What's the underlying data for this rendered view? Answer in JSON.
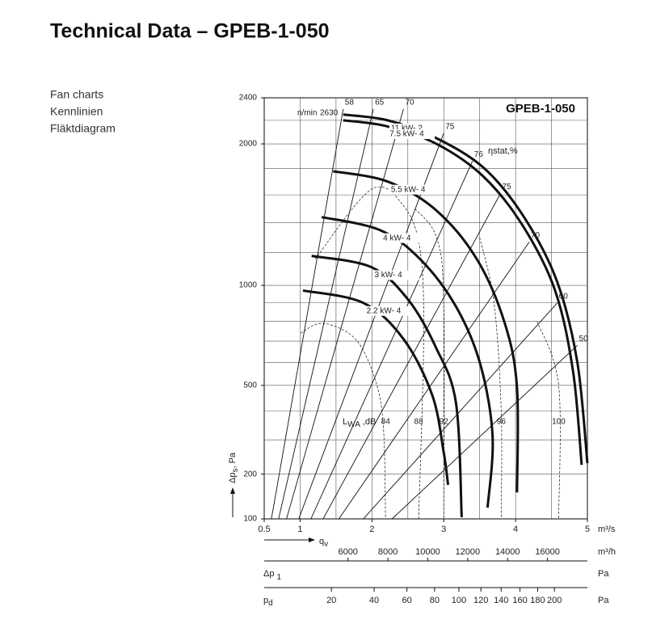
{
  "header": {
    "title": "Technical Data – GPEB-1-050"
  },
  "side_labels": [
    "Fan charts",
    "Kennlinien",
    "Fläktdiagram"
  ],
  "chart_data": {
    "type": "line",
    "title": "GPEB-1-050",
    "yscale": "sqrt",
    "xlim": [
      0.5,
      5
    ],
    "xticks": [
      0.5,
      1,
      2,
      3,
      4,
      5
    ],
    "xgrid": [
      0.5,
      1,
      1.5,
      2,
      2.5,
      3,
      3.5,
      4,
      4.5,
      5
    ],
    "ylim": [
      100,
      2400
    ],
    "yticks": [
      100,
      200,
      500,
      1000,
      2000,
      2400
    ],
    "ygrid": [
      100,
      200,
      300,
      400,
      500,
      600,
      700,
      800,
      900,
      1000,
      1200,
      1400,
      1600,
      1800,
      2000,
      2200,
      2400
    ],
    "xlabel": "q",
    "xlabel_sub": "v",
    "x_unit": "m³/s",
    "ylabel": "Δp",
    "ylabel_sub": "s",
    "ylabel_tail": ", Pa",
    "speed_label": "n/min",
    "speed": 2630,
    "efficiency_label": "ηstat,%",
    "noise_label": "L",
    "noise_label_sub": "WA",
    "noise_label_tail": ",dB",
    "color": "#111111",
    "series": [
      {
        "name": "11 kW- 2",
        "x": [
          1.6,
          2.22,
          2.89,
          3.57,
          4.13,
          4.58,
          4.86,
          5.0
        ],
        "values": [
          2250,
          2200,
          2050,
          1800,
          1430,
          1020,
          600,
          230
        ]
      },
      {
        "name": "7.5 kW- 4",
        "x": [
          1.6,
          2.2,
          2.9,
          3.55,
          4.1,
          4.55,
          4.8,
          4.92
        ],
        "values": [
          2200,
          2150,
          2000,
          1740,
          1380,
          970,
          560,
          225
        ]
      },
      {
        "name": "5.5 kW- 4",
        "x": [
          1.46,
          2.22,
          2.89,
          3.46,
          3.85,
          4.02,
          4.02
        ],
        "values": [
          1780,
          1700,
          1490,
          1160,
          790,
          490,
          155
        ]
      },
      {
        "name": "4 kW- 4",
        "x": [
          1.3,
          2.11,
          2.67,
          3.17,
          3.51,
          3.68,
          3.61
        ],
        "values": [
          1440,
          1350,
          1160,
          880,
          590,
          310,
          122
        ]
      },
      {
        "name": "3 kW- 4",
        "x": [
          1.16,
          1.99,
          2.5,
          2.89,
          3.17,
          3.25
        ],
        "values": [
          1180,
          1110,
          920,
          670,
          430,
          103
        ]
      },
      {
        "name": "2.2 kW- 4",
        "x": [
          1.04,
          1.88,
          2.44,
          2.84,
          3.0,
          3.06
        ],
        "values": [
          970,
          900,
          710,
          460,
          260,
          173
        ]
      }
    ],
    "efficiency_lines": [
      {
        "name": "58",
        "x": [
          0.6,
          1.6
        ],
        "values": [
          100,
          2300
        ]
      },
      {
        "name": "65",
        "x": [
          0.7,
          2.02
        ],
        "values": [
          100,
          2300
        ]
      },
      {
        "name": "70",
        "x": [
          0.81,
          2.44
        ],
        "values": [
          100,
          2300
        ]
      },
      {
        "name": "75",
        "x": [
          0.98,
          3.0
        ],
        "values": [
          100,
          2090
        ]
      },
      {
        "name": "76",
        "x": [
          1.15,
          3.4
        ],
        "values": [
          100,
          1860
        ]
      },
      {
        "name": "75",
        "x": [
          1.32,
          3.79
        ],
        "values": [
          100,
          1610
        ]
      },
      {
        "name": "70",
        "x": [
          1.54,
          4.19
        ],
        "values": [
          100,
          1270
        ]
      },
      {
        "name": "60",
        "x": [
          1.88,
          4.58
        ],
        "values": [
          100,
          900
        ]
      },
      {
        "name": "50",
        "x": [
          2.28,
          4.86
        ],
        "values": [
          100,
          680
        ]
      }
    ],
    "noise_lines": [
      {
        "name": "84",
        "x": [
          1.01,
          1.32,
          1.77,
          2.05,
          2.16,
          2.19
        ],
        "values": [
          740,
          790,
          710,
          520,
          340,
          100
        ]
      },
      {
        "name": "88",
        "x": [
          1.21,
          1.99,
          2.44,
          2.67,
          2.72,
          2.65
        ],
        "values": [
          1160,
          1640,
          1520,
          1220,
          710,
          100
        ]
      },
      {
        "name": "92",
        "x": [
          2.6,
          2.9,
          3.0,
          3.0
        ],
        "values": [
          1500,
          1300,
          900,
          100
        ]
      },
      {
        "name": "96",
        "x": [
          3.5,
          3.7,
          3.8,
          3.8
        ],
        "values": [
          1300,
          900,
          400,
          100
        ]
      },
      {
        "name": "100",
        "x": [
          4.3,
          4.6,
          4.6
        ],
        "values": [
          800,
          500,
          100
        ]
      }
    ],
    "x2_ticks": [
      6000,
      8000,
      10000,
      12000,
      14000,
      16000
    ],
    "x2_unit": "m³/h",
    "dp1_label": "Δp",
    "dp1_sub": "1",
    "dp1_unit": "Pa",
    "pd_label": "p",
    "pd_sub": "d",
    "pd_unit": "Pa",
    "pd_ticks": [
      20,
      40,
      60,
      80,
      100,
      120,
      140,
      160,
      180,
      200
    ]
  }
}
